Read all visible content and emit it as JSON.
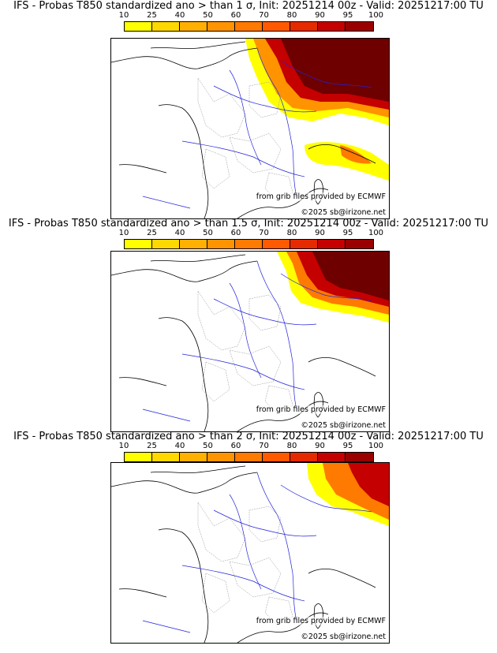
{
  "panels": [
    {
      "title": "IFS - Probas T850  standardized ano > than 1 σ, Init: 20251214 00z - Valid: 20251217:00 TU",
      "credit_source": "from grib files provided by ECMWF",
      "credit_copyright": "©2025 sb@irizone.net",
      "probability_extent": "large"
    },
    {
      "title": "IFS - Probas T850  standardized ano > than 1.5 σ, Init: 20251214 00z - Valid: 20251217:00 TU",
      "credit_source": "from grib files provided by ECMWF",
      "credit_copyright": "©2025 sb@irizone.net",
      "probability_extent": "medium"
    },
    {
      "title": "IFS - Probas T850  standardized ano > than 2 σ, Init: 20251214 00z - Valid: 20251217:00 TU",
      "credit_source": "from grib files provided by ECMWF",
      "credit_copyright": "©2025 sb@irizone.net",
      "probability_extent": "small"
    }
  ],
  "legend": {
    "levels": [
      "10",
      "25",
      "40",
      "50",
      "60",
      "70",
      "80",
      "90",
      "95",
      "100"
    ],
    "colors": [
      "#ffff00",
      "#ffd800",
      "#ffb000",
      "#ff9400",
      "#ff7a00",
      "#ff5a00",
      "#e62a00",
      "#c40000",
      "#9a0000",
      "#6e0000"
    ]
  }
}
